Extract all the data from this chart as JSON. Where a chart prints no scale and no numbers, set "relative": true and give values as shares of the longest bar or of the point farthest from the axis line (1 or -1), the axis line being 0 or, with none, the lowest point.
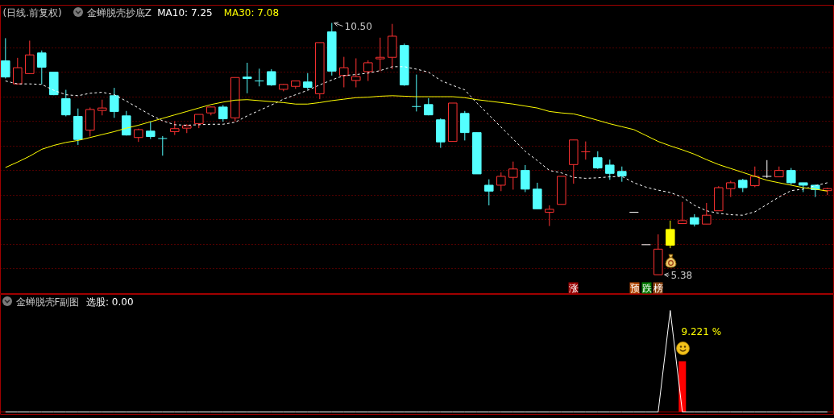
{
  "chart_data": [
    {
      "type": "candlestick",
      "title": "(日线.前复权)",
      "subtitle": "金蝉脱壳抄底Z",
      "categories": [
        null,
        null,
        null,
        null,
        null,
        null,
        null,
        null,
        null,
        null,
        null,
        null,
        null,
        null,
        null,
        null,
        null,
        null,
        null,
        null,
        null,
        null,
        null,
        null,
        null,
        null,
        null,
        null,
        null,
        null,
        null,
        null,
        null,
        null,
        null,
        null,
        null,
        null,
        null,
        null,
        null,
        null,
        null,
        null,
        null,
        null,
        null,
        null,
        null,
        null,
        null,
        null,
        null,
        null,
        null,
        null,
        null,
        null,
        null,
        null,
        null,
        null,
        null,
        null,
        null,
        null,
        null,
        null,
        null
      ],
      "ohlc": [
        [
          9.73,
          10.19,
          9.37,
          9.4
        ],
        [
          9.26,
          9.79,
          9.26,
          9.59
        ],
        [
          9.47,
          10.14,
          9.47,
          9.85
        ],
        [
          9.89,
          9.94,
          9.25,
          9.6
        ],
        [
          9.5,
          9.5,
          9.03,
          9.04
        ],
        [
          8.96,
          9.14,
          8.6,
          8.63
        ],
        [
          8.6,
          8.76,
          8.02,
          8.13
        ],
        [
          8.32,
          8.78,
          8.19,
          8.74
        ],
        [
          8.72,
          8.94,
          8.62,
          8.77
        ],
        [
          9.02,
          9.18,
          8.57,
          8.7
        ],
        [
          8.61,
          8.71,
          8.21,
          8.22
        ],
        [
          8.17,
          8.35,
          8.08,
          8.33
        ],
        [
          8.3,
          8.5,
          8.14,
          8.19
        ],
        [
          8.15,
          8.2,
          7.8,
          8.15
        ],
        [
          8.29,
          8.5,
          8.22,
          8.35
        ],
        [
          8.36,
          8.44,
          8.26,
          8.41
        ],
        [
          8.45,
          8.64,
          8.36,
          8.64
        ],
        [
          8.67,
          8.8,
          8.62,
          8.79
        ],
        [
          8.79,
          8.83,
          8.49,
          8.55
        ],
        [
          8.57,
          9.39,
          8.5,
          9.39
        ],
        [
          9.4,
          9.69,
          9.07,
          9.37
        ],
        [
          9.32,
          9.57,
          9.21,
          9.32
        ],
        [
          9.51,
          9.56,
          9.22,
          9.24
        ],
        [
          9.15,
          9.26,
          9.11,
          9.25
        ],
        [
          9.21,
          9.32,
          9.16,
          9.32
        ],
        [
          9.3,
          9.48,
          9.14,
          9.19
        ],
        [
          9.06,
          10.1,
          8.95,
          10.1
        ],
        [
          10.32,
          10.5,
          9.43,
          9.52
        ],
        [
          9.43,
          9.81,
          9.19,
          9.59
        ],
        [
          9.33,
          9.78,
          9.19,
          9.41
        ],
        [
          9.51,
          9.74,
          9.32,
          9.69
        ],
        [
          9.77,
          10.2,
          9.52,
          9.8
        ],
        [
          9.8,
          10.48,
          9.56,
          10.23
        ],
        [
          10.04,
          10.08,
          9.22,
          9.24
        ],
        [
          8.8,
          9.45,
          8.7,
          8.8
        ],
        [
          8.84,
          8.97,
          8.62,
          8.63
        ],
        [
          8.53,
          8.56,
          7.96,
          8.08
        ],
        [
          8.09,
          8.87,
          8.09,
          8.87
        ],
        [
          8.66,
          8.71,
          8.11,
          8.27
        ],
        [
          8.27,
          8.27,
          7.43,
          7.43
        ],
        [
          7.2,
          7.32,
          6.79,
          7.08
        ],
        [
          7.2,
          7.46,
          7.08,
          7.38
        ],
        [
          7.36,
          7.68,
          7.11,
          7.53
        ],
        [
          7.5,
          7.61,
          7.06,
          7.12
        ],
        [
          7.12,
          7.25,
          6.72,
          6.72
        ],
        [
          6.65,
          6.79,
          6.37,
          6.71
        ],
        [
          6.81,
          7.38,
          6.81,
          7.38
        ],
        [
          7.62,
          8.12,
          7.23,
          8.12
        ],
        [
          7.88,
          8.09,
          7.72,
          7.88
        ],
        [
          7.76,
          7.89,
          7.53,
          7.55
        ],
        [
          7.61,
          7.72,
          7.31,
          7.44
        ],
        [
          7.48,
          7.58,
          7.27,
          7.39
        ],
        [
          6.65,
          6.65,
          6.65,
          6.65
        ],
        [
          5.99,
          5.99,
          5.99,
          5.99
        ],
        [
          5.38,
          6.2,
          5.38,
          5.9
        ],
        [
          5.98,
          6.48,
          5.92,
          6.3
        ],
        [
          6.42,
          6.86,
          6.42,
          6.48
        ],
        [
          6.54,
          6.61,
          6.36,
          6.41
        ],
        [
          6.41,
          6.84,
          6.41,
          6.59
        ],
        [
          6.68,
          7.18,
          6.68,
          7.15
        ],
        [
          7.13,
          7.29,
          6.96,
          7.25
        ],
        [
          7.3,
          7.33,
          7.06,
          7.15
        ],
        [
          7.19,
          7.58,
          7.16,
          7.38
        ],
        [
          7.38,
          7.71,
          7.35,
          7.38
        ],
        [
          7.37,
          7.58,
          7.37,
          7.5
        ],
        [
          7.5,
          7.55,
          7.21,
          7.25
        ],
        [
          7.25,
          7.25,
          7.06,
          7.2
        ],
        [
          7.2,
          7.21,
          6.96,
          7.11
        ],
        [
          7.09,
          7.15,
          7.0,
          7.13
        ]
      ],
      "colors": [
        "#54ffff",
        "#ff3232",
        "#ff3232",
        "#54ffff",
        "#54ffff",
        "#54ffff",
        "#54ffff",
        "#ff3232",
        "#ff3232",
        "#54ffff",
        "#54ffff",
        "#ff3232",
        "#54ffff",
        "#54ffff",
        "#ff3232",
        "#ff3232",
        "#ff3232",
        "#ff3232",
        "#54ffff",
        "#ff3232",
        "#54ffff",
        "#54ffff",
        "#54ffff",
        "#ff3232",
        "#ff3232",
        "#54ffff",
        "#ff3232",
        "#54ffff",
        "#ff3232",
        "#ff3232",
        "#ff3232",
        "#ff3232",
        "#ff3232",
        "#54ffff",
        "#54ffff",
        "#54ffff",
        "#54ffff",
        "#ff3232",
        "#54ffff",
        "#54ffff",
        "#54ffff",
        "#ff3232",
        "#ff3232",
        "#54ffff",
        "#54ffff",
        "#ff3232",
        "#ff3232",
        "#ff3232",
        "#ff3232",
        "#54ffff",
        "#54ffff",
        "#54ffff",
        "#ffffff",
        "#ffffff",
        "#ff3232",
        "#ffff00",
        "#ff3232",
        "#54ffff",
        "#ff3232",
        "#ff3232",
        "#ff3232",
        "#54ffff",
        "#ff3232",
        "#ffffff",
        "#ff3232",
        "#54ffff",
        "#54ffff",
        "#54ffff",
        "#ff3232"
      ],
      "series": [
        {
          "name": "MA10: 7.25",
          "type": "line",
          "color": "#ffffff",
          "line_style": "dashed",
          "values": [
            9.32,
            9.26,
            9.26,
            9.25,
            9.13,
            9.04,
            9.02,
            9.07,
            9.09,
            9.04,
            8.91,
            8.77,
            8.63,
            8.51,
            8.43,
            8.42,
            8.43,
            8.44,
            8.44,
            8.48,
            8.61,
            8.72,
            8.83,
            8.95,
            9.04,
            9.13,
            9.24,
            9.34,
            9.43,
            9.45,
            9.48,
            9.53,
            9.61,
            9.61,
            9.56,
            9.5,
            9.33,
            9.23,
            9.14,
            8.87,
            8.63,
            8.38,
            8.14,
            7.89,
            7.7,
            7.5,
            7.45,
            7.36,
            7.34,
            7.35,
            7.37,
            7.38,
            7.25,
            7.16,
            7.1,
            7.05,
            6.96,
            6.79,
            6.68,
            6.63,
            6.6,
            6.59,
            6.66,
            6.81,
            6.96,
            7.09,
            7.12,
            7.19,
            7.25
          ]
        },
        {
          "name": "MA30: 7.08",
          "type": "line",
          "color": "#ffff00",
          "values": [
            7.56,
            7.67,
            7.79,
            7.93,
            8.01,
            8.07,
            8.11,
            8.17,
            8.23,
            8.29,
            8.36,
            8.42,
            8.49,
            8.56,
            8.63,
            8.7,
            8.77,
            8.84,
            8.89,
            8.93,
            8.94,
            8.92,
            8.9,
            8.88,
            8.85,
            8.85,
            8.88,
            8.92,
            8.95,
            8.98,
            8.99,
            9.01,
            9.02,
            9.01,
            9.0,
            9.0,
            9.0,
            9.0,
            8.98,
            8.94,
            8.91,
            8.88,
            8.85,
            8.81,
            8.77,
            8.7,
            8.67,
            8.65,
            8.59,
            8.52,
            8.45,
            8.39,
            8.33,
            8.21,
            8.09,
            8.0,
            7.92,
            7.83,
            7.72,
            7.62,
            7.54,
            7.46,
            7.38,
            7.3,
            7.25,
            7.2,
            7.15,
            7.12,
            7.08
          ]
        }
      ],
      "ylim": [
        4.98,
        10.86
      ],
      "yticks": [
        {
          "value": 5.5,
          "label": null
        },
        {
          "value": 6,
          "label": null
        },
        {
          "value": 6.5,
          "label": null
        },
        {
          "value": 7,
          "label": null
        },
        {
          "value": 7.5,
          "label": null
        },
        {
          "value": 8,
          "label": null
        },
        {
          "value": 8.5,
          "label": null
        },
        {
          "value": 9,
          "label": null
        },
        {
          "value": 9.5,
          "label": null
        },
        {
          "value": 10,
          "label": null
        }
      ],
      "grid": "y",
      "tick_labels": false,
      "annotations": [
        "10.50",
        "5.38",
        "涨",
        "预",
        "跌",
        "榜"
      ]
    },
    {
      "type": "line",
      "title": "金蝉脱壳F副图",
      "categories": [
        null,
        null,
        null,
        null,
        null,
        null,
        null,
        null,
        null,
        null,
        null,
        null,
        null,
        null,
        null,
        null,
        null,
        null,
        null,
        null,
        null,
        null,
        null,
        null,
        null,
        null,
        null,
        null,
        null,
        null,
        null,
        null,
        null,
        null,
        null,
        null,
        null,
        null,
        null,
        null,
        null,
        null,
        null,
        null,
        null,
        null,
        null,
        null,
        null,
        null,
        null,
        null,
        null,
        null,
        null,
        null,
        null,
        null,
        null,
        null,
        null,
        null,
        null,
        null,
        null,
        null,
        null,
        null,
        null
      ],
      "relative": true,
      "series": [
        {
          "name": "选股: 0.00",
          "color": "#ffffff",
          "values": [
            0,
            0,
            0,
            0,
            0,
            0,
            0,
            0,
            0,
            0,
            0,
            0,
            0,
            0,
            0,
            0,
            0,
            0,
            0,
            0,
            0,
            0,
            0,
            0,
            0,
            0,
            0,
            0,
            0,
            0,
            0,
            0,
            0,
            0,
            0,
            0,
            0,
            0,
            0,
            0,
            0,
            0,
            0,
            0,
            0,
            0,
            0,
            0,
            0,
            0,
            0,
            0,
            0,
            0,
            0,
            1,
            0,
            0,
            0,
            0,
            0,
            0,
            0,
            0,
            0,
            0,
            0,
            0,
            0
          ]
        },
        {
          "type": "bar",
          "color": "#ff0000",
          "values": [
            null,
            null,
            null,
            null,
            null,
            null,
            null,
            null,
            null,
            null,
            null,
            null,
            null,
            null,
            null,
            null,
            null,
            null,
            null,
            null,
            null,
            null,
            null,
            null,
            null,
            null,
            null,
            null,
            null,
            null,
            null,
            null,
            null,
            null,
            null,
            null,
            null,
            null,
            null,
            null,
            null,
            null,
            null,
            null,
            null,
            null,
            null,
            null,
            null,
            null,
            null,
            null,
            null,
            null,
            null,
            null,
            0.5,
            null,
            null,
            null,
            null,
            null,
            null,
            null,
            null,
            null,
            null,
            null,
            null
          ]
        }
      ],
      "tick_labels": false,
      "annotations": [
        "9.221 %"
      ]
    }
  ]
}
